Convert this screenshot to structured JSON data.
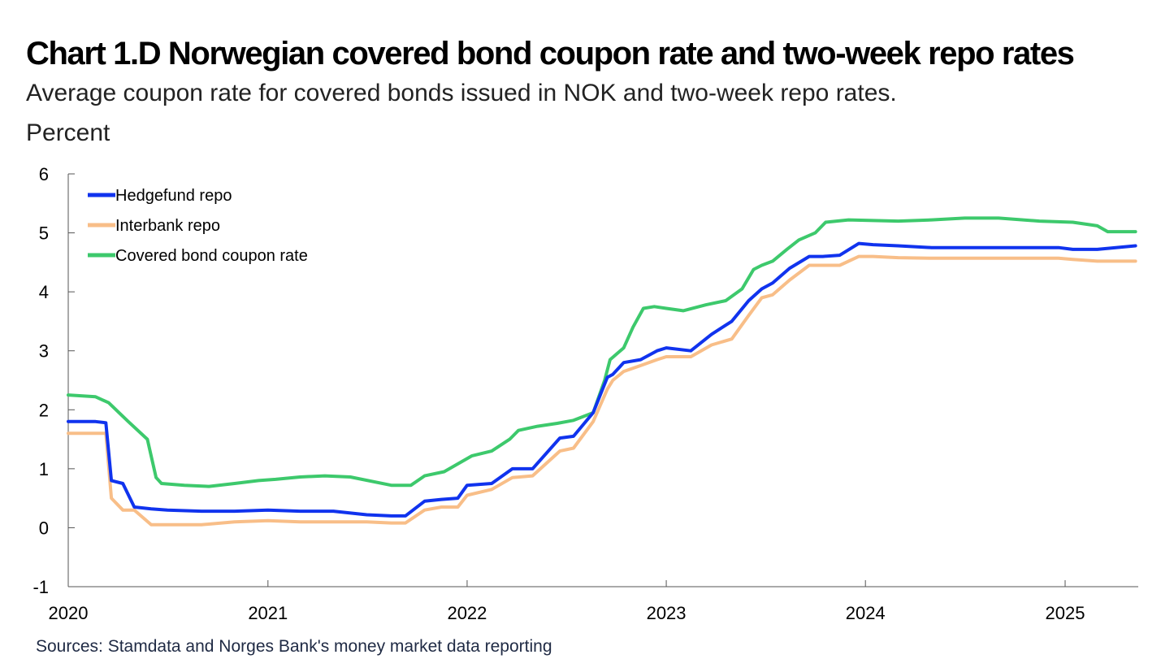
{
  "header": {
    "title": "Chart 1.D Norwegian covered bond coupon rate and two-week repo rates",
    "subtitle": "Average coupon rate for covered bonds issued in NOK and two-week repo rates.",
    "unit": "Percent"
  },
  "footer": {
    "source": "Sources: Stamdata and  Norges Bank's money market data reporting"
  },
  "chart_data": {
    "type": "line",
    "title": "Chart 1.D Norwegian covered bond coupon rate and two-week repo rates",
    "subtitle": "Average coupon rate for covered bonds issued in NOK and two-week repo rates.",
    "ylabel": "Percent",
    "xlabel": "",
    "xlim": [
      "2020-01-01",
      "2025-05-15"
    ],
    "ylim": [
      -1,
      6
    ],
    "x_ticks": [
      "2020",
      "2021",
      "2022",
      "2023",
      "2024",
      "2025"
    ],
    "y_ticks": [
      -1,
      0,
      1,
      2,
      3,
      4,
      5,
      6
    ],
    "grid": false,
    "legend_position": "top-left",
    "series": [
      {
        "name": "Hedgefund repo",
        "color": "#1033ee",
        "x": [
          "2020-01-01",
          "2020-02-20",
          "2020-03-10",
          "2020-03-20",
          "2020-04-10",
          "2020-05-01",
          "2020-06-01",
          "2020-07-01",
          "2020-09-01",
          "2020-11-01",
          "2021-01-01",
          "2021-03-01",
          "2021-05-01",
          "2021-07-01",
          "2021-08-15",
          "2021-09-10",
          "2021-10-15",
          "2021-11-15",
          "2021-12-15",
          "2022-01-01",
          "2022-02-15",
          "2022-03-25",
          "2022-05-01",
          "2022-06-20",
          "2022-07-15",
          "2022-08-20",
          "2022-09-15",
          "2022-09-25",
          "2022-10-15",
          "2022-11-15",
          "2022-12-15",
          "2023-01-01",
          "2023-02-15",
          "2023-03-25",
          "2023-05-01",
          "2023-06-01",
          "2023-06-25",
          "2023-07-15",
          "2023-08-15",
          "2023-09-20",
          "2023-10-15",
          "2023-11-15",
          "2023-12-20",
          "2024-01-15",
          "2024-03-01",
          "2024-05-01",
          "2024-07-01",
          "2024-09-01",
          "2024-11-01",
          "2024-12-20",
          "2025-01-15",
          "2025-03-01",
          "2025-05-10"
        ],
        "values": [
          1.8,
          1.8,
          1.78,
          0.8,
          0.75,
          0.35,
          0.32,
          0.3,
          0.28,
          0.28,
          0.3,
          0.28,
          0.28,
          0.22,
          0.2,
          0.2,
          0.45,
          0.48,
          0.5,
          0.72,
          0.75,
          1.0,
          1.0,
          1.52,
          1.55,
          1.95,
          2.55,
          2.6,
          2.8,
          2.85,
          3.0,
          3.05,
          3.0,
          3.28,
          3.5,
          3.85,
          4.05,
          4.15,
          4.4,
          4.6,
          4.6,
          4.62,
          4.82,
          4.8,
          4.78,
          4.75,
          4.75,
          4.75,
          4.75,
          4.75,
          4.72,
          4.72,
          4.78
        ]
      },
      {
        "name": "Interbank repo",
        "color": "#f8be88",
        "x": [
          "2020-01-01",
          "2020-02-20",
          "2020-03-10",
          "2020-03-20",
          "2020-04-10",
          "2020-05-01",
          "2020-06-01",
          "2020-07-01",
          "2020-09-01",
          "2020-11-01",
          "2021-01-01",
          "2021-03-01",
          "2021-05-01",
          "2021-07-01",
          "2021-08-15",
          "2021-09-10",
          "2021-10-15",
          "2021-11-15",
          "2021-12-15",
          "2022-01-01",
          "2022-02-15",
          "2022-03-25",
          "2022-05-01",
          "2022-06-20",
          "2022-07-15",
          "2022-08-20",
          "2022-09-15",
          "2022-09-25",
          "2022-10-15",
          "2022-11-15",
          "2022-12-15",
          "2023-01-01",
          "2023-02-15",
          "2023-03-25",
          "2023-05-01",
          "2023-06-01",
          "2023-06-25",
          "2023-07-15",
          "2023-08-15",
          "2023-09-20",
          "2023-10-15",
          "2023-11-15",
          "2023-12-20",
          "2024-01-15",
          "2024-03-01",
          "2024-05-01",
          "2024-07-01",
          "2024-09-01",
          "2024-11-01",
          "2024-12-20",
          "2025-01-15",
          "2025-03-01",
          "2025-05-10"
        ],
        "values": [
          1.6,
          1.6,
          1.6,
          0.5,
          0.3,
          0.3,
          0.05,
          0.05,
          0.05,
          0.1,
          0.12,
          0.1,
          0.1,
          0.1,
          0.08,
          0.08,
          0.3,
          0.35,
          0.35,
          0.55,
          0.65,
          0.85,
          0.88,
          1.3,
          1.35,
          1.8,
          2.35,
          2.5,
          2.65,
          2.75,
          2.85,
          2.9,
          2.9,
          3.1,
          3.2,
          3.6,
          3.9,
          3.95,
          4.2,
          4.45,
          4.45,
          4.45,
          4.6,
          4.6,
          4.58,
          4.57,
          4.57,
          4.57,
          4.57,
          4.57,
          4.55,
          4.52,
          4.52
        ]
      },
      {
        "name": "Covered bond coupon rate",
        "color": "#3dc96c",
        "x": [
          "2020-01-01",
          "2020-02-20",
          "2020-03-15",
          "2020-04-20",
          "2020-05-25",
          "2020-06-10",
          "2020-06-20",
          "2020-08-01",
          "2020-09-15",
          "2020-11-01",
          "2020-12-15",
          "2021-01-15",
          "2021-03-01",
          "2021-04-15",
          "2021-06-01",
          "2021-08-15",
          "2021-09-01",
          "2021-09-20",
          "2021-10-15",
          "2021-11-20",
          "2022-01-10",
          "2022-02-15",
          "2022-03-20",
          "2022-04-05",
          "2022-05-10",
          "2022-06-15",
          "2022-07-15",
          "2022-08-20",
          "2022-09-10",
          "2022-09-20",
          "2022-10-15",
          "2022-11-01",
          "2022-11-20",
          "2022-12-10",
          "2023-01-01",
          "2023-02-01",
          "2023-03-15",
          "2023-04-20",
          "2023-05-20",
          "2023-06-10",
          "2023-06-25",
          "2023-07-15",
          "2023-08-10",
          "2023-09-01",
          "2023-10-01",
          "2023-10-20",
          "2023-12-01",
          "2024-03-01",
          "2024-05-01",
          "2024-07-01",
          "2024-09-01",
          "2024-11-15",
          "2025-01-15",
          "2025-03-01",
          "2025-03-20",
          "2025-05-10"
        ],
        "values": [
          2.25,
          2.22,
          2.12,
          1.8,
          1.5,
          0.85,
          0.75,
          0.72,
          0.7,
          0.75,
          0.8,
          0.82,
          0.86,
          0.88,
          0.86,
          0.72,
          0.72,
          0.72,
          0.88,
          0.95,
          1.22,
          1.3,
          1.5,
          1.65,
          1.72,
          1.77,
          1.82,
          1.95,
          2.5,
          2.85,
          3.05,
          3.4,
          3.72,
          3.75,
          3.72,
          3.68,
          3.78,
          3.85,
          4.05,
          4.38,
          4.45,
          4.52,
          4.72,
          4.88,
          5.0,
          5.18,
          5.22,
          5.2,
          5.22,
          5.25,
          5.25,
          5.2,
          5.18,
          5.12,
          5.02,
          5.02
        ]
      }
    ]
  }
}
